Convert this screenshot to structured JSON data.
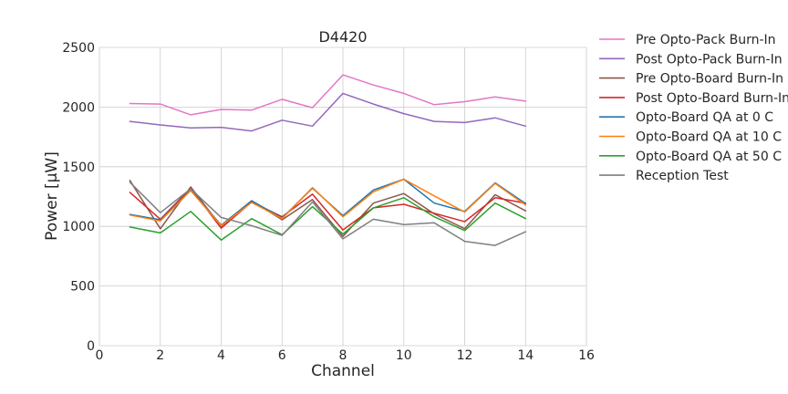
{
  "chart_data": {
    "type": "line",
    "title": "D4420",
    "xlabel": "Channel",
    "ylabel": "Power [μW]",
    "xlim": [
      0,
      16
    ],
    "ylim": [
      0,
      2500
    ],
    "xticks": [
      0,
      2,
      4,
      6,
      8,
      10,
      12,
      14,
      16
    ],
    "yticks": [
      0,
      500,
      1000,
      1500,
      2000,
      2500
    ],
    "grid": true,
    "legend_position": "outside-right",
    "x": [
      1,
      2,
      3,
      4,
      5,
      6,
      7,
      8,
      9,
      10,
      11,
      12,
      13,
      14
    ],
    "series": [
      {
        "name": "Pre Opto-Pack Burn-In",
        "color": "#e377c2",
        "values": [
          2030,
          2025,
          1935,
          1980,
          1975,
          2065,
          1995,
          2270,
          2185,
          2115,
          2020,
          2045,
          2085,
          2050
        ]
      },
      {
        "name": "Post Opto-Pack Burn-In",
        "color": "#9467bd",
        "values": [
          1880,
          1850,
          1825,
          1830,
          1800,
          1890,
          1840,
          2115,
          2025,
          1945,
          1880,
          1870,
          1910,
          1840
        ]
      },
      {
        "name": "Pre Opto-Board Burn-In",
        "color": "#8c564b",
        "values": [
          1385,
          980,
          1330,
          1000,
          1215,
          1055,
          1225,
          915,
          1195,
          1275,
          1105,
          980,
          1265,
          1130
        ]
      },
      {
        "name": "Post Opto-Board Burn-In",
        "color": "#d62728",
        "values": [
          1285,
          1060,
          1320,
          985,
          1205,
          1080,
          1270,
          970,
          1155,
          1185,
          1110,
          1040,
          1240,
          1195
        ]
      },
      {
        "name": "Opto-Board QA at 0 C",
        "color": "#1f77b4",
        "values": [
          1100,
          1055,
          1305,
          1010,
          1215,
          1070,
          1320,
          1090,
          1305,
          1395,
          1195,
          1125,
          1365,
          1190
        ]
      },
      {
        "name": "Opto-Board QA at 10 C",
        "color": "#ff7f0e",
        "values": [
          1095,
          1045,
          1300,
          1005,
          1200,
          1065,
          1325,
          1080,
          1290,
          1395,
          1255,
          1120,
          1360,
          1180
        ]
      },
      {
        "name": "Opto-Board QA at 50 C",
        "color": "#2ca02c",
        "values": [
          995,
          945,
          1125,
          885,
          1065,
          930,
          1165,
          935,
          1155,
          1240,
          1080,
          965,
          1195,
          1065
        ]
      },
      {
        "name": "Reception Test",
        "color": "#7f7f7f",
        "values": [
          1370,
          1115,
          1315,
          1075,
          1005,
          925,
          1205,
          895,
          1060,
          1015,
          1030,
          875,
          840,
          955
        ]
      }
    ]
  }
}
